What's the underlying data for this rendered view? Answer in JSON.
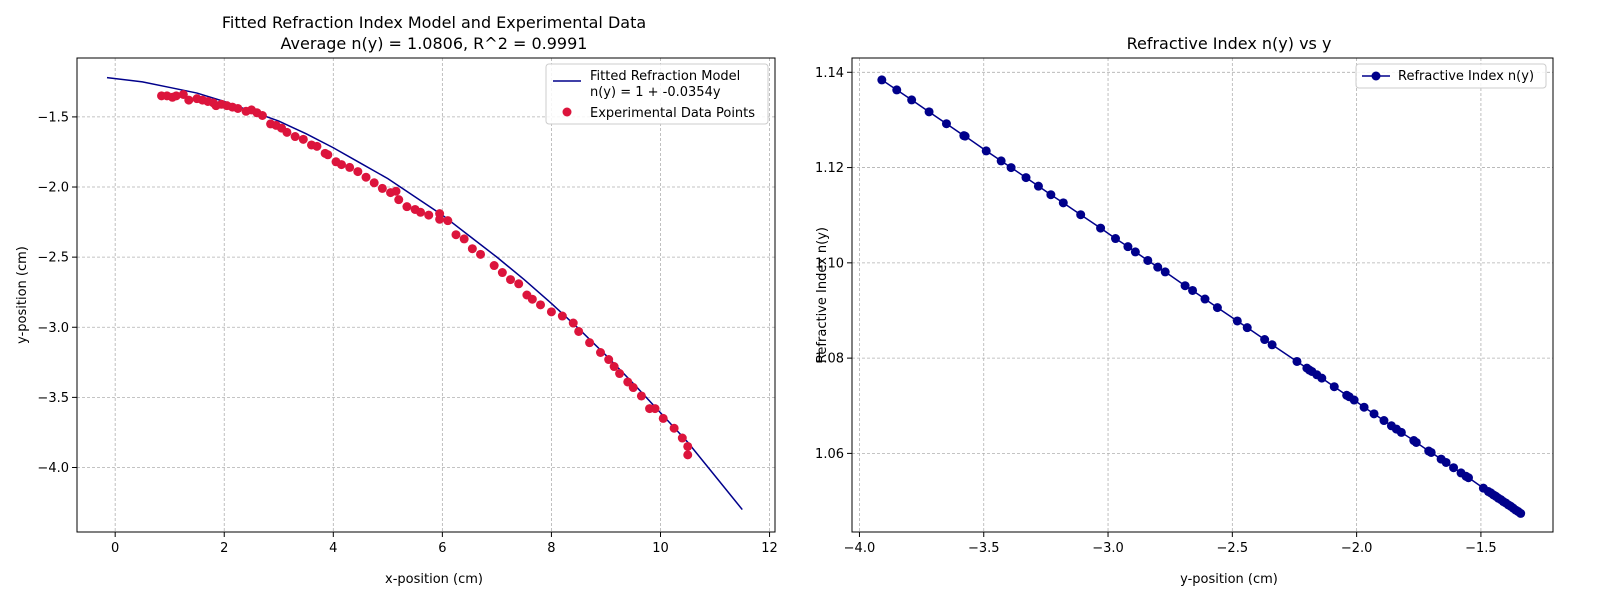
{
  "chart_data": [
    {
      "type": "scatter",
      "title": "Fitted Refraction Index Model and Experimental Data",
      "subtitle": "Average n(y) = 1.0806, R^2 = 0.9991",
      "xlabel": "x-position (cm)",
      "ylabel": "y-position (cm)",
      "xlim": [
        -0.7,
        12.1
      ],
      "ylim": [
        -4.46,
        -1.08
      ],
      "xticks": [
        0,
        2,
        4,
        6,
        8,
        10,
        12
      ],
      "xtick_labels": [
        "0",
        "2",
        "4",
        "6",
        "8",
        "10",
        "12"
      ],
      "yticks": [
        -1.5,
        -2.0,
        -2.5,
        -3.0,
        -3.5,
        -4.0
      ],
      "ytick_labels": [
        "−1.5",
        "−2.0",
        "−2.5",
        "−3.0",
        "−3.5",
        "−4.0"
      ],
      "grid": true,
      "legend_position": "top-right",
      "series": [
        {
          "name": "Fitted Refraction Model\nn(y) = 1 + -0.0354y",
          "kind": "line",
          "color": "#00008b",
          "x": [
            -0.15,
            0.5,
            1.0,
            1.5,
            2.0,
            2.5,
            3.0,
            3.5,
            4.0,
            4.5,
            5.0,
            5.5,
            6.0,
            6.5,
            7.0,
            7.5,
            8.0,
            8.5,
            9.0,
            9.5,
            10.0,
            10.5,
            11.0,
            11.5
          ],
          "y": [
            -1.22,
            -1.25,
            -1.29,
            -1.33,
            -1.39,
            -1.46,
            -1.53,
            -1.62,
            -1.72,
            -1.83,
            -1.94,
            -2.07,
            -2.2,
            -2.35,
            -2.5,
            -2.66,
            -2.83,
            -3.01,
            -3.2,
            -3.4,
            -3.61,
            -3.82,
            -4.06,
            -4.3
          ]
        },
        {
          "name": "Experimental Data Points",
          "kind": "scatter",
          "color": "#dc143c",
          "x": [
            0.85,
            0.95,
            1.05,
            1.12,
            1.25,
            1.35,
            1.5,
            1.6,
            1.7,
            1.8,
            1.85,
            1.95,
            2.05,
            2.15,
            2.25,
            2.4,
            2.5,
            2.6,
            2.7,
            2.85,
            2.95,
            3.05,
            3.15,
            3.3,
            3.45,
            3.6,
            3.7,
            3.85,
            3.9,
            4.05,
            4.15,
            4.3,
            4.45,
            4.6,
            4.75,
            4.9,
            5.05,
            5.15,
            5.2,
            5.35,
            5.5,
            5.6,
            5.75,
            5.95,
            5.95,
            6.1,
            6.25,
            6.4,
            6.55,
            6.7,
            6.95,
            7.1,
            7.25,
            7.4,
            7.55,
            7.65,
            7.8,
            8.0,
            8.2,
            8.4,
            8.5,
            8.7,
            8.9,
            9.05,
            9.15,
            9.25,
            9.4,
            9.5,
            9.65,
            9.8,
            9.9,
            10.05,
            10.25,
            10.4,
            10.5,
            10.5
          ],
          "y": [
            -1.35,
            -1.35,
            -1.36,
            -1.35,
            -1.34,
            -1.38,
            -1.37,
            -1.38,
            -1.39,
            -1.4,
            -1.42,
            -1.41,
            -1.42,
            -1.43,
            -1.44,
            -1.46,
            -1.45,
            -1.47,
            -1.49,
            -1.55,
            -1.56,
            -1.58,
            -1.61,
            -1.64,
            -1.66,
            -1.7,
            -1.71,
            -1.76,
            -1.77,
            -1.82,
            -1.84,
            -1.86,
            -1.89,
            -1.93,
            -1.97,
            -2.01,
            -2.04,
            -2.03,
            -2.09,
            -2.14,
            -2.16,
            -2.18,
            -2.2,
            -2.23,
            -2.19,
            -2.24,
            -2.34,
            -2.37,
            -2.44,
            -2.48,
            -2.56,
            -2.61,
            -2.66,
            -2.69,
            -2.77,
            -2.8,
            -2.84,
            -2.89,
            -2.92,
            -2.97,
            -3.03,
            -3.11,
            -3.18,
            -3.23,
            -3.28,
            -3.33,
            -3.39,
            -3.43,
            -3.49,
            -3.58,
            -3.58,
            -3.65,
            -3.72,
            -3.79,
            -3.85,
            -3.91
          ]
        }
      ]
    },
    {
      "type": "line",
      "title": "Refractive Index n(y) vs y",
      "xlabel": "y-position (cm)",
      "ylabel": "Refractive Index n(y)",
      "xlim": [
        -4.03,
        -1.21
      ],
      "ylim": [
        1.0435,
        1.143
      ],
      "xticks": [
        -4.0,
        -3.5,
        -3.0,
        -2.5,
        -2.0,
        -1.5
      ],
      "xtick_labels": [
        "−4.0",
        "−3.5",
        "−3.0",
        "−2.5",
        "−2.0",
        "−1.5"
      ],
      "yticks": [
        1.06,
        1.08,
        1.1,
        1.12,
        1.14
      ],
      "ytick_labels": [
        "1.06",
        "1.08",
        "1.10",
        "1.12",
        "1.14"
      ],
      "grid": true,
      "legend_position": "top-right",
      "series": [
        {
          "name": "Refractive Index n(y)",
          "kind": "line-marker",
          "color": "#00008b",
          "x": [
            -3.91,
            -3.85,
            -3.79,
            -3.72,
            -3.65,
            -3.58,
            -3.575,
            -3.49,
            -3.43,
            -3.39,
            -3.33,
            -3.28,
            -3.23,
            -3.18,
            -3.11,
            -3.03,
            -2.97,
            -2.92,
            -2.89,
            -2.84,
            -2.8,
            -2.77,
            -2.69,
            -2.66,
            -2.61,
            -2.56,
            -2.48,
            -2.44,
            -2.37,
            -2.34,
            -2.24,
            -2.2,
            -2.19,
            -2.18,
            -2.16,
            -2.14,
            -2.09,
            -2.04,
            -2.03,
            -2.01,
            -1.97,
            -1.93,
            -1.89,
            -1.86,
            -1.84,
            -1.82,
            -1.77,
            -1.76,
            -1.71,
            -1.7,
            -1.66,
            -1.64,
            -1.61,
            -1.58,
            -1.56,
            -1.55,
            -1.49,
            -1.47,
            -1.46,
            -1.45,
            -1.44,
            -1.43,
            -1.42,
            -1.41,
            -1.4,
            -1.39,
            -1.38,
            -1.37,
            -1.36,
            -1.35,
            -1.34
          ],
          "y": [
            1.1384,
            1.1363,
            1.1342,
            1.1317,
            1.1292,
            1.1267,
            1.1266,
            1.1235,
            1.1214,
            1.12,
            1.1179,
            1.1161,
            1.1143,
            1.1126,
            1.1101,
            1.1073,
            1.1051,
            1.1034,
            1.1023,
            1.1005,
            1.0991,
            1.0981,
            1.0952,
            1.0942,
            1.0924,
            1.0906,
            1.0878,
            1.0864,
            1.0839,
            1.0828,
            1.0793,
            1.0779,
            1.0775,
            1.0772,
            1.0765,
            1.0758,
            1.074,
            1.0722,
            1.0719,
            1.0712,
            1.0697,
            1.0683,
            1.0669,
            1.0658,
            1.0651,
            1.0644,
            1.0627,
            1.0623,
            1.0605,
            1.0602,
            1.0588,
            1.0581,
            1.057,
            1.0559,
            1.0552,
            1.0549,
            1.0527,
            1.052,
            1.0517,
            1.0513,
            1.051,
            1.0506,
            1.0503,
            1.0499,
            1.0496,
            1.0492,
            1.0489,
            1.0485,
            1.0481,
            1.0478,
            1.0474
          ]
        }
      ]
    }
  ]
}
